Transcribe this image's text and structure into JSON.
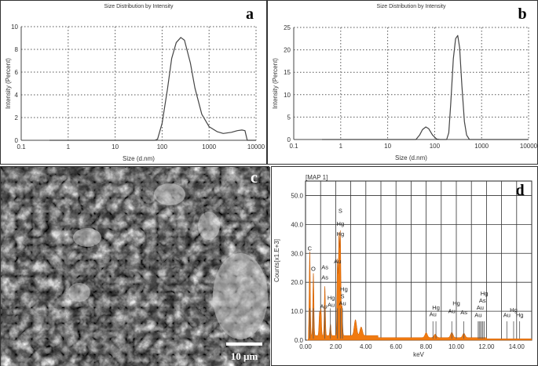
{
  "chart_data": [
    {
      "panel": "a",
      "type": "line",
      "title": "Size Distribution by Intensity",
      "xlabel": "Size (d.nm)",
      "ylabel": "Intensity (Percent)",
      "xscale": "log",
      "xlim": [
        0.1,
        10000
      ],
      "ylim": [
        0,
        10
      ],
      "grid": true,
      "xticks": [
        "0.1",
        "1",
        "10",
        "100",
        "1000",
        "10000"
      ],
      "yticks": [
        "0",
        "2",
        "4",
        "6",
        "8",
        "10"
      ],
      "x": [
        0.4,
        70,
        80,
        100,
        130,
        160,
        200,
        250,
        300,
        400,
        500,
        700,
        1000,
        1500,
        2000,
        3000,
        4000,
        5000,
        5800,
        6500,
        7500,
        10000
      ],
      "y": [
        0,
        0,
        0.1,
        1.5,
        4.5,
        7.2,
        8.6,
        9.05,
        8.8,
        6.8,
        4.6,
        2.3,
        1.2,
        0.75,
        0.6,
        0.7,
        0.85,
        0.9,
        0.85,
        0,
        0,
        0
      ]
    },
    {
      "panel": "b",
      "type": "line",
      "title": "Size Distribution by Intensity",
      "xlabel": "Size (d.nm)",
      "ylabel": "Intensity (Percent)",
      "xscale": "log",
      "xlim": [
        0.1,
        10000
      ],
      "ylim": [
        0,
        25
      ],
      "grid": true,
      "xticks": [
        "0.1",
        "1",
        "10",
        "100",
        "1000",
        "10000"
      ],
      "yticks": [
        "0",
        "5",
        "10",
        "15",
        "20",
        "25"
      ],
      "x": [
        0.4,
        40,
        48,
        55,
        65,
        75,
        90,
        110,
        130,
        180,
        200,
        220,
        250,
        280,
        310,
        340,
        380,
        430,
        480,
        550,
        620,
        10000
      ],
      "y": [
        0,
        0,
        1,
        2.2,
        2.8,
        2.4,
        1,
        0.1,
        0,
        0,
        1.5,
        8,
        18,
        22.5,
        23.2,
        20.5,
        12,
        4,
        1,
        0,
        0,
        0
      ]
    },
    {
      "panel": "d",
      "type": "area",
      "title": "[MAP 1]",
      "xlabel": "keV",
      "ylabel": "Counts[x1.E+3]",
      "xlim": [
        0,
        15
      ],
      "ylim": [
        0,
        55
      ],
      "grid": true,
      "xticks": [
        "0.00",
        "2.00",
        "4.00",
        "6.00",
        "8.00",
        "10.00",
        "12.00",
        "14.00"
      ],
      "yticks": [
        "0.0",
        "10.0",
        "20.0",
        "30.0",
        "40.0",
        "50.0"
      ],
      "peaks": [
        [
          0.28,
          29
        ],
        [
          0.52,
          21.5
        ],
        [
          0.93,
          8
        ],
        [
          1.02,
          9
        ],
        [
          1.28,
          17
        ],
        [
          1.65,
          4
        ],
        [
          2.12,
          26
        ],
        [
          2.22,
          34
        ],
        [
          2.31,
          35
        ],
        [
          2.42,
          10
        ],
        [
          3.31,
          5.5
        ],
        [
          3.69,
          3
        ],
        [
          8.0,
          1.7
        ],
        [
          8.6,
          1.2
        ],
        [
          9.7,
          1.8
        ],
        [
          10.5,
          1.5
        ]
      ],
      "labels": [
        {
          "t": "C",
          "x": 0.28,
          "y": 31
        },
        {
          "t": "O",
          "x": 0.52,
          "y": 24
        },
        {
          "t": "As",
          "x": 1.28,
          "y": 24.5
        },
        {
          "t": "As",
          "x": 1.28,
          "y": 21
        },
        {
          "t": "Au",
          "x": 1.2,
          "y": 11
        },
        {
          "t": "Hg",
          "x": 1.7,
          "y": 14
        },
        {
          "t": "Au",
          "x": 1.7,
          "y": 11.5
        },
        {
          "t": "S",
          "x": 2.31,
          "y": 44
        },
        {
          "t": "Hg",
          "x": 2.31,
          "y": 39.5
        },
        {
          "t": "Hg",
          "x": 2.31,
          "y": 36
        },
        {
          "t": "Au",
          "x": 2.12,
          "y": 26.5
        },
        {
          "t": "Hg",
          "x": 2.55,
          "y": 17
        },
        {
          "t": "S",
          "x": 2.45,
          "y": 14.5
        },
        {
          "t": "Au",
          "x": 2.45,
          "y": 12
        },
        {
          "t": "Hg",
          "x": 8.65,
          "y": 10.5
        },
        {
          "t": "Au",
          "x": 8.45,
          "y": 8.3
        },
        {
          "t": "Hg",
          "x": 10.0,
          "y": 12
        },
        {
          "t": "Au",
          "x": 9.7,
          "y": 9.3
        },
        {
          "t": "As",
          "x": 10.5,
          "y": 9
        },
        {
          "t": "Hg",
          "x": 11.85,
          "y": 15.5
        },
        {
          "t": "As",
          "x": 11.73,
          "y": 13
        },
        {
          "t": "Au",
          "x": 11.58,
          "y": 10.5
        },
        {
          "t": "Au",
          "x": 11.45,
          "y": 8
        },
        {
          "t": "Hg",
          "x": 13.8,
          "y": 9.8
        },
        {
          "t": "Au",
          "x": 13.35,
          "y": 8
        },
        {
          "t": "Hg",
          "x": 14.2,
          "y": 8
        }
      ],
      "lines": [
        0.28,
        0.52,
        1.28,
        1.65,
        2.12,
        2.31,
        2.45,
        8.45,
        8.65,
        9.7,
        10.0,
        10.5,
        11.45,
        11.52,
        11.6,
        11.68,
        11.76,
        11.85,
        13.35,
        13.8,
        14.2
      ]
    }
  ],
  "panels": {
    "a": "a",
    "b": "b",
    "c": "c",
    "d": "d"
  },
  "sem": {
    "scale_label": "10 µm"
  },
  "colors": {
    "spectrum": "#f07a10",
    "line": "#444444"
  }
}
